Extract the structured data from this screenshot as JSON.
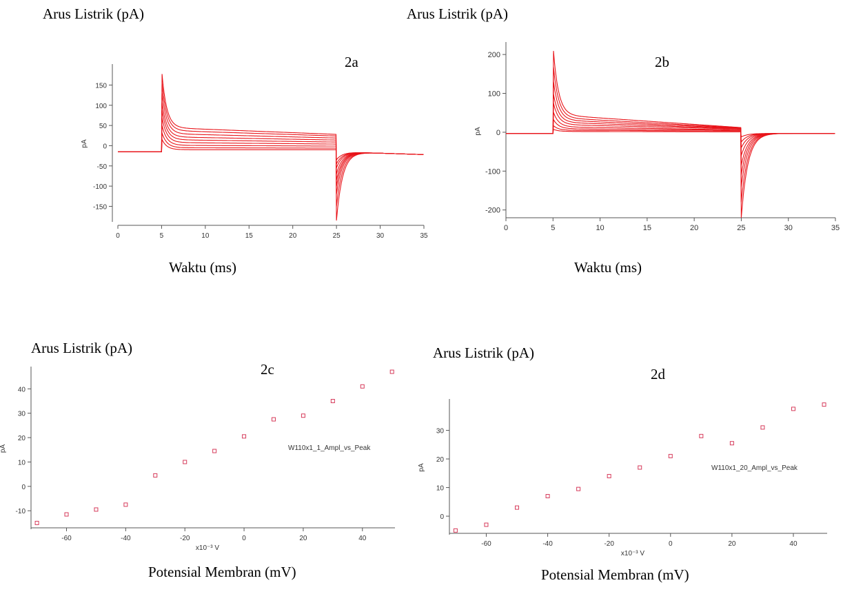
{
  "panels": [
    {
      "id": "2a",
      "ylabel_caption": "Arus Listrik (pA)",
      "xlabel_caption": "Waktu (ms)",
      "panel_label": "2a"
    },
    {
      "id": "2b",
      "ylabel_caption": "Arus Listrik (pA)",
      "xlabel_caption": "Waktu (ms)",
      "panel_label": "2b"
    },
    {
      "id": "2c",
      "ylabel_caption": "Arus Listrik (pA)",
      "xlabel_caption": "Potensial Membran (mV)",
      "panel_label": "2c"
    },
    {
      "id": "2d",
      "ylabel_caption": "Arus Listrik (pA)",
      "xlabel_caption": "Potensial Membran (mV)",
      "panel_label": "2d"
    }
  ],
  "chart_data": [
    {
      "type": "line",
      "panel": "2a",
      "ylabel": "pA",
      "xlim": [
        0,
        35
      ],
      "ylim": [
        -185,
        195
      ],
      "xticks": [
        0,
        5,
        10,
        15,
        20,
        25,
        30,
        35
      ],
      "yticks": [
        -150,
        -100,
        -50,
        0,
        50,
        100,
        150
      ],
      "baseline": -15,
      "step_on": 5,
      "step_off": 25,
      "tail_end": -22,
      "series": [
        {
          "peak": 190,
          "plateau_start": 45,
          "plateau_end": 28,
          "off_peak": -185
        },
        {
          "peak": 165,
          "plateau_start": 38,
          "plateau_end": 24,
          "off_peak": -150
        },
        {
          "peak": 140,
          "plateau_start": 30,
          "plateau_end": 19,
          "off_peak": -120
        },
        {
          "peak": 115,
          "plateau_start": 22,
          "plateau_end": 14,
          "off_peak": -100
        },
        {
          "peak": 95,
          "plateau_start": 15,
          "plateau_end": 9,
          "off_peak": -85
        },
        {
          "peak": 75,
          "plateau_start": 8,
          "plateau_end": 4,
          "off_peak": -70
        },
        {
          "peak": 55,
          "plateau_start": 1,
          "plateau_end": -1,
          "off_peak": -55
        },
        {
          "peak": 35,
          "plateau_start": -5,
          "plateau_end": -6,
          "off_peak": -45
        },
        {
          "peak": 18,
          "plateau_start": -10,
          "plateau_end": -10,
          "off_peak": -35
        }
      ]
    },
    {
      "type": "line",
      "panel": "2b",
      "ylabel": "pA",
      "xlim": [
        0,
        35
      ],
      "ylim": [
        -220,
        225
      ],
      "xticks": [
        0,
        5,
        10,
        15,
        20,
        25,
        30,
        35
      ],
      "yticks": [
        -200,
        -100,
        0,
        100,
        200
      ],
      "baseline": -3,
      "step_on": 5,
      "step_off": 25,
      "tail_end": -3,
      "series": [
        {
          "peak": 225,
          "plateau_start": 45,
          "plateau_end": 12,
          "off_peak": -220
        },
        {
          "peak": 180,
          "plateau_start": 38,
          "plateau_end": 11,
          "off_peak": -180
        },
        {
          "peak": 140,
          "plateau_start": 32,
          "plateau_end": 10,
          "off_peak": -140
        },
        {
          "peak": 105,
          "plateau_start": 26,
          "plateau_end": 9,
          "off_peak": -110
        },
        {
          "peak": 80,
          "plateau_start": 20,
          "plateau_end": 8,
          "off_peak": -85
        },
        {
          "peak": 55,
          "plateau_start": 14,
          "plateau_end": 6,
          "off_peak": -60
        },
        {
          "peak": 35,
          "plateau_start": 9,
          "plateau_end": 5,
          "off_peak": -40
        },
        {
          "peak": 18,
          "plateau_start": 5,
          "plateau_end": 3,
          "off_peak": -25
        },
        {
          "peak": 8,
          "plateau_start": 2,
          "plateau_end": 1,
          "off_peak": -12
        }
      ]
    },
    {
      "type": "scatter",
      "panel": "2c",
      "ylabel": "pA",
      "xlabel": "x10⁻³ V",
      "legend": "W110x1_1_Ampl_vs_Peak",
      "xlim": [
        -72,
        51
      ],
      "ylim": [
        -17,
        48
      ],
      "xticks": [
        -60,
        -40,
        -20,
        0,
        20,
        40
      ],
      "yticks": [
        -10,
        0,
        10,
        20,
        30,
        40
      ],
      "x": [
        -70,
        -60,
        -50,
        -40,
        -30,
        -20,
        -10,
        0,
        10,
        20,
        30,
        40,
        50
      ],
      "y": [
        -15,
        -11.5,
        -9.5,
        -7.5,
        4.5,
        10,
        14.5,
        20.5,
        27.5,
        29,
        35,
        41,
        47
      ]
    },
    {
      "type": "scatter",
      "panel": "2d",
      "ylabel": "pA",
      "xlabel": "x10⁻³ V",
      "legend": "W110x1_20_Ampl_vs_Peak",
      "xlim": [
        -72,
        51
      ],
      "ylim": [
        -6,
        40
      ],
      "xticks": [
        -60,
        -40,
        -20,
        0,
        20,
        40
      ],
      "yticks": [
        0,
        10,
        20,
        30
      ],
      "x": [
        -70,
        -60,
        -50,
        -40,
        -30,
        -20,
        -10,
        0,
        10,
        20,
        30,
        40,
        50
      ],
      "y": [
        -5,
        -3,
        3,
        7,
        9.5,
        14,
        17,
        21,
        28,
        25.5,
        31,
        37.5,
        39
      ]
    }
  ]
}
